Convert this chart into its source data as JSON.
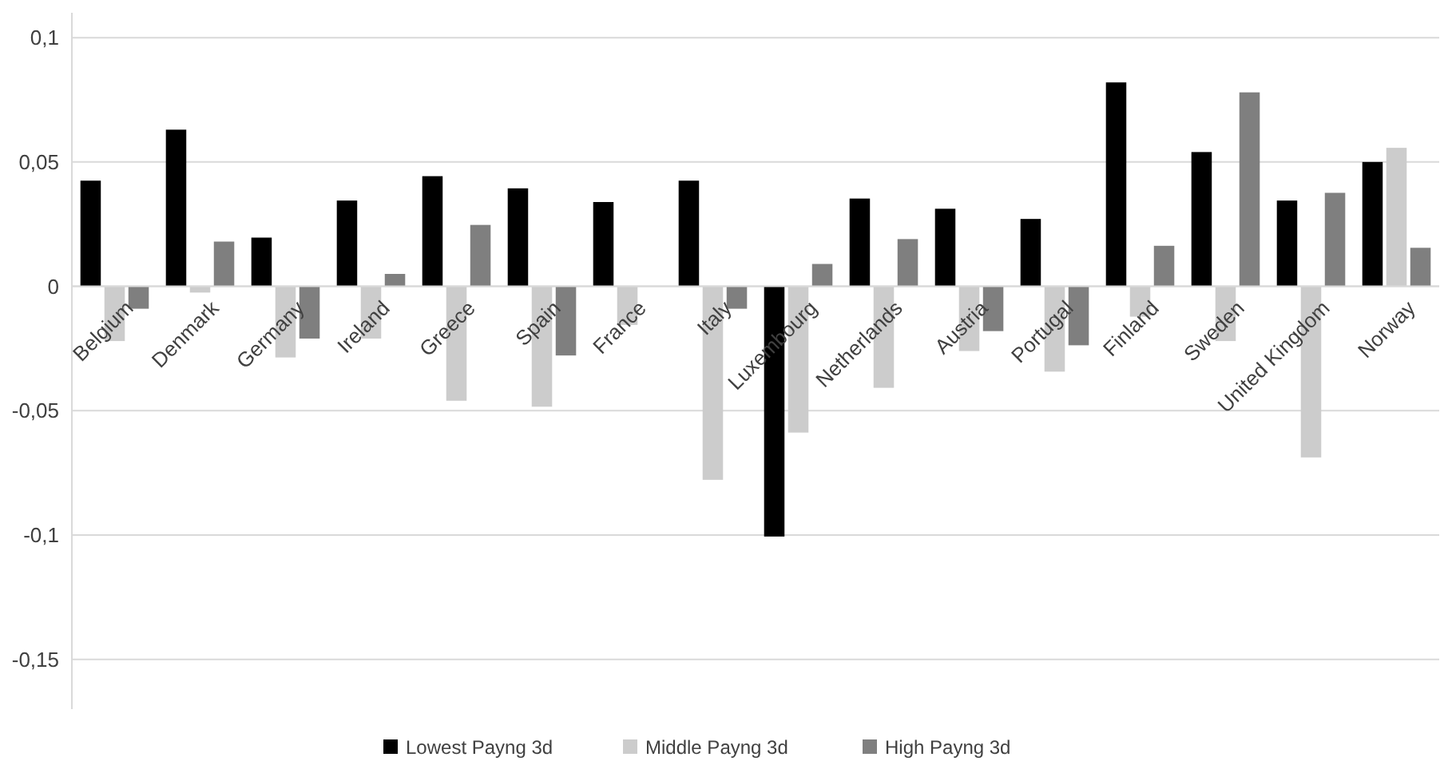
{
  "chart_data": {
    "type": "bar",
    "categories": [
      "Belgium",
      "Denmark",
      "Germany",
      "Ireland",
      "Greece",
      "Spain",
      "France",
      "Italy",
      "Luxembourg",
      "Netherlands",
      "Austria",
      "Portugal",
      "Finland",
      "Sweden",
      "United Kingdom",
      "Norway"
    ],
    "series": [
      {
        "name": "Lowest Payng 3d",
        "color": "#000000",
        "values": [
          0.0425,
          0.063,
          0.0196,
          0.0345,
          0.0443,
          0.0394,
          0.0339,
          0.0425,
          -0.1006,
          0.0353,
          0.0312,
          0.0271,
          0.082,
          0.054,
          0.0345,
          0.05
        ]
      },
      {
        "name": "Middle Payng 3d",
        "color": "#cccccc",
        "values": [
          -0.022,
          -0.0025,
          -0.0286,
          -0.021,
          -0.046,
          -0.0484,
          -0.0155,
          -0.0778,
          -0.0588,
          -0.0408,
          -0.026,
          -0.0343,
          -0.0122,
          -0.022,
          -0.0688,
          0.0557
        ]
      },
      {
        "name": "High Payng 3d",
        "color": "#7f7f7f",
        "values": [
          -0.009,
          0.018,
          -0.021,
          0.005,
          0.0247,
          -0.0278,
          0,
          -0.009,
          0.009,
          0.019,
          -0.018,
          -0.0237,
          0.0163,
          0.078,
          0.0376,
          0.0155
        ]
      }
    ],
    "ylim": [
      -0.17,
      0.11
    ],
    "yticks": [
      {
        "value": -0.15,
        "label": "-0,15"
      },
      {
        "value": -0.1,
        "label": "-0,1"
      },
      {
        "value": -0.05,
        "label": "-0,05"
      },
      {
        "value": 0,
        "label": "0"
      },
      {
        "value": 0.05,
        "label": "0,05"
      },
      {
        "value": 0.1,
        "label": "0,1"
      }
    ],
    "grid": "y",
    "legend": "bottom"
  }
}
